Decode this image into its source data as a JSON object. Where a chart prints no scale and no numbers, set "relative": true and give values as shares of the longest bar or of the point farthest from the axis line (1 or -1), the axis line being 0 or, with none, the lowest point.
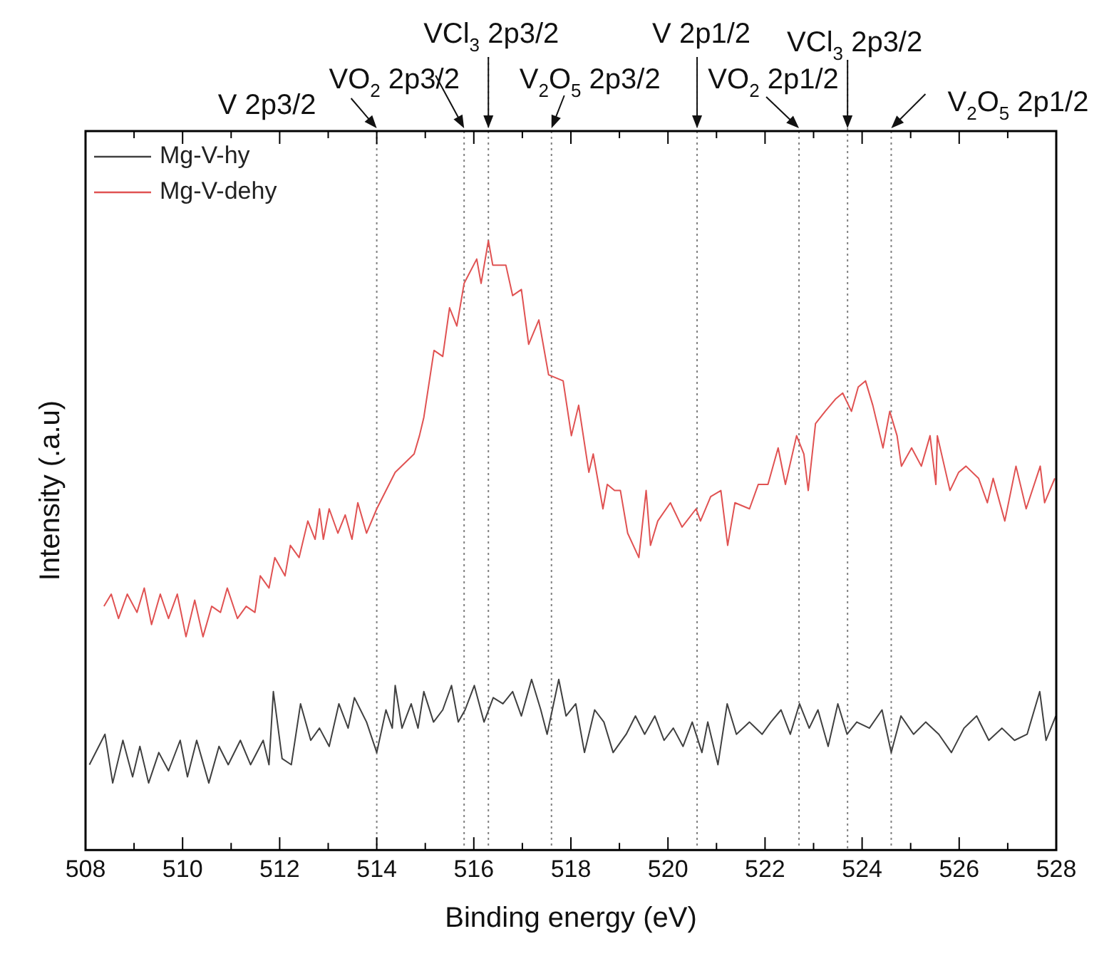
{
  "chart_data": {
    "type": "line",
    "xlabel": "Binding energy (eV)",
    "ylabel": "Intensity (.a.u)",
    "relative": true,
    "xlim": [
      508,
      528
    ],
    "xticks": [
      508,
      {
        "value": 509,
        "label": null
      },
      510,
      {
        "value": 511,
        "label": null
      },
      512,
      {
        "value": 513,
        "label": null
      },
      514,
      {
        "value": 515,
        "label": null
      },
      516,
      {
        "value": 517,
        "label": null
      },
      518,
      {
        "value": 519,
        "label": null
      },
      520,
      {
        "value": 521,
        "label": null
      },
      522,
      {
        "value": 523,
        "label": null
      },
      524,
      {
        "value": 525,
        "label": null
      },
      526,
      {
        "value": 527,
        "label": null
      },
      528
    ],
    "legend": "top left",
    "marker": "none",
    "line_style": "solid",
    "series": [
      {
        "name": "Mg-V-hy",
        "color": "#404040",
        "x": [
          508.08,
          508.4,
          508.56,
          508.77,
          508.97,
          509.12,
          509.3,
          509.51,
          509.71,
          509.95,
          510.1,
          510.29,
          510.54,
          510.75,
          510.94,
          511.19,
          511.4,
          511.66,
          511.78,
          511.87,
          512.05,
          512.24,
          512.43,
          512.64,
          512.82,
          513.02,
          513.22,
          513.41,
          513.54,
          513.79,
          514.0,
          514.19,
          514.32,
          514.38,
          514.52,
          514.71,
          514.85,
          514.97,
          515.17,
          515.36,
          515.54,
          515.68,
          515.82,
          516.01,
          516.21,
          516.4,
          516.6,
          516.8,
          516.98,
          517.19,
          517.38,
          517.51,
          517.75,
          517.9,
          518.1,
          518.28,
          518.49,
          518.68,
          518.87,
          519.14,
          519.33,
          519.52,
          519.73,
          519.92,
          520.11,
          520.31,
          520.5,
          520.7,
          520.82,
          521.03,
          521.22,
          521.41,
          521.68,
          521.94,
          522.12,
          522.33,
          522.52,
          522.71,
          522.91,
          523.09,
          523.3,
          523.5,
          523.69,
          523.89,
          524.15,
          524.41,
          524.6,
          524.8,
          525.06,
          525.31,
          525.58,
          525.84,
          526.1,
          526.36,
          526.61,
          526.88,
          527.14,
          527.4,
          527.66,
          527.79,
          527.99
        ],
        "values": [
          0.14,
          0.19,
          0.11,
          0.18,
          0.12,
          0.17,
          0.11,
          0.16,
          0.13,
          0.18,
          0.12,
          0.18,
          0.11,
          0.17,
          0.14,
          0.18,
          0.14,
          0.18,
          0.14,
          0.26,
          0.15,
          0.14,
          0.24,
          0.18,
          0.2,
          0.17,
          0.24,
          0.2,
          0.25,
          0.21,
          0.16,
          0.23,
          0.2,
          0.27,
          0.2,
          0.24,
          0.2,
          0.26,
          0.21,
          0.23,
          0.27,
          0.21,
          0.23,
          0.27,
          0.21,
          0.25,
          0.24,
          0.26,
          0.22,
          0.28,
          0.23,
          0.19,
          0.28,
          0.22,
          0.24,
          0.16,
          0.23,
          0.21,
          0.16,
          0.19,
          0.22,
          0.19,
          0.22,
          0.18,
          0.2,
          0.17,
          0.21,
          0.16,
          0.21,
          0.14,
          0.24,
          0.19,
          0.21,
          0.19,
          0.21,
          0.23,
          0.19,
          0.24,
          0.2,
          0.23,
          0.17,
          0.24,
          0.19,
          0.21,
          0.2,
          0.23,
          0.16,
          0.22,
          0.19,
          0.21,
          0.19,
          0.16,
          0.2,
          0.22,
          0.18,
          0.2,
          0.18,
          0.19,
          0.26,
          0.18,
          0.22
        ]
      },
      {
        "name": "Mg-V-dehy",
        "color": "#e05252",
        "x": [
          508.38,
          508.53,
          508.68,
          508.86,
          509.06,
          509.21,
          509.36,
          509.54,
          509.71,
          509.89,
          510.07,
          510.25,
          510.42,
          510.6,
          510.78,
          510.92,
          511.13,
          511.31,
          511.49,
          511.6,
          511.78,
          511.9,
          512.11,
          512.22,
          512.4,
          512.58,
          512.73,
          512.82,
          512.9,
          513.02,
          513.2,
          513.35,
          513.49,
          513.61,
          513.79,
          514.0,
          514.38,
          514.77,
          514.88,
          514.97,
          515.18,
          515.36,
          515.5,
          515.65,
          515.8,
          516.06,
          516.15,
          516.3,
          516.39,
          516.66,
          516.8,
          516.98,
          517.13,
          517.34,
          517.54,
          517.84,
          518.01,
          518.16,
          518.37,
          518.46,
          518.66,
          518.75,
          518.9,
          519.02,
          519.17,
          519.4,
          519.55,
          519.64,
          519.79,
          520.05,
          520.29,
          520.58,
          520.67,
          520.88,
          521.09,
          521.23,
          521.38,
          521.68,
          521.86,
          522.06,
          522.27,
          522.42,
          522.65,
          522.8,
          522.89,
          523.04,
          523.24,
          523.45,
          523.6,
          523.78,
          523.92,
          524.07,
          524.22,
          524.43,
          524.57,
          524.72,
          524.81,
          525.02,
          525.22,
          525.4,
          525.52,
          525.55,
          525.81,
          525.99,
          526.14,
          526.4,
          526.58,
          526.7,
          526.94,
          527.17,
          527.38,
          527.67,
          527.76,
          527.97
        ],
        "values": [
          0.4,
          0.42,
          0.38,
          0.42,
          0.39,
          0.43,
          0.37,
          0.42,
          0.38,
          0.42,
          0.35,
          0.41,
          0.35,
          0.4,
          0.39,
          0.43,
          0.38,
          0.4,
          0.39,
          0.45,
          0.43,
          0.48,
          0.45,
          0.5,
          0.48,
          0.54,
          0.51,
          0.56,
          0.51,
          0.56,
          0.52,
          0.55,
          0.51,
          0.57,
          0.52,
          0.56,
          0.62,
          0.65,
          0.68,
          0.71,
          0.82,
          0.81,
          0.89,
          0.86,
          0.93,
          0.97,
          0.93,
          1,
          0.96,
          0.96,
          0.91,
          0.92,
          0.83,
          0.87,
          0.78,
          0.77,
          0.68,
          0.73,
          0.62,
          0.65,
          0.56,
          0.6,
          0.59,
          0.59,
          0.52,
          0.48,
          0.59,
          0.5,
          0.54,
          0.57,
          0.53,
          0.56,
          0.54,
          0.58,
          0.59,
          0.5,
          0.57,
          0.56,
          0.6,
          0.6,
          0.66,
          0.6,
          0.68,
          0.65,
          0.59,
          0.7,
          0.72,
          0.74,
          0.75,
          0.72,
          0.76,
          0.77,
          0.73,
          0.66,
          0.72,
          0.68,
          0.63,
          0.66,
          0.63,
          0.68,
          0.6,
          0.68,
          0.59,
          0.62,
          0.63,
          0.61,
          0.57,
          0.61,
          0.54,
          0.63,
          0.56,
          0.63,
          0.57,
          0.61
        ]
      }
    ],
    "ref_lines": [
      {
        "axis": "x",
        "value": 514.0,
        "label": "V 2p3/2",
        "color": "#808080",
        "line_style": "dotted"
      },
      {
        "axis": "x",
        "value": 515.8,
        "label": "VO$_{2}$ 2p3/2",
        "color": "#808080",
        "line_style": "dotted"
      },
      {
        "axis": "x",
        "value": 516.3,
        "label": "VCl$_{3}$ 2p3/2",
        "color": "#808080",
        "line_style": "dotted"
      },
      {
        "axis": "x",
        "value": 517.6,
        "label": "V$_{2}$O$_{5}$ 2p3/2",
        "color": "#808080",
        "line_style": "dotted"
      },
      {
        "axis": "x",
        "value": 520.6,
        "label": "V 2p1/2",
        "color": "#808080",
        "line_style": "dotted"
      },
      {
        "axis": "x",
        "value": 522.7,
        "label": "VO$_{2}$ 2p1/2",
        "color": "#808080",
        "line_style": "dotted"
      },
      {
        "axis": "x",
        "value": 523.7,
        "label": "VCl$_{3}$ 2p3/2",
        "color": "#808080",
        "line_style": "dotted"
      },
      {
        "axis": "x",
        "value": 524.6,
        "label": "V$_{2}$O$_{5}$ 2p1/2",
        "color": "#808080",
        "line_style": "dotted"
      }
    ]
  }
}
